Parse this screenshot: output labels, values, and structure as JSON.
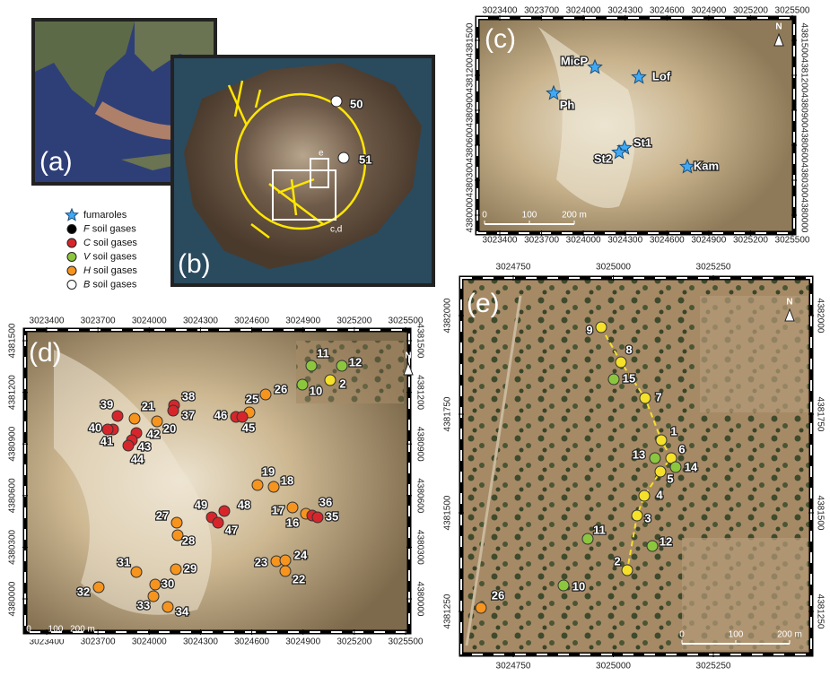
{
  "legend": [
    {
      "text": "fumaroles",
      "color": "#3fa9f5"
    },
    {
      "letter": "F",
      "text": "soil gases",
      "color": "#000000"
    },
    {
      "letter": "C",
      "text": "soil gases",
      "color": "#d7262b"
    },
    {
      "letter": "V",
      "text": "soil gases",
      "color": "#8cc63f"
    },
    {
      "letter": "H",
      "text": "soil gases",
      "color": "#f7941d"
    },
    {
      "letter": "B",
      "text": "soil gases",
      "color": "#ffffff"
    }
  ],
  "panels": {
    "a": {
      "label": "(a)"
    },
    "b": {
      "label": "(b)",
      "points": [
        {
          "label": "50",
          "color": "#ffffff"
        },
        {
          "label": "51",
          "color": "#ffffff"
        }
      ],
      "boxes": [
        "e",
        "c,d"
      ]
    },
    "c": {
      "label": "(c)",
      "xticks": [
        3023400,
        3023700,
        3024000,
        3024300,
        3024600,
        3024900,
        3025200,
        3025500
      ],
      "yticks": [
        4381500,
        4381200,
        4380900,
        4380600,
        4380300,
        4380000
      ],
      "points": [
        {
          "label": "MicP",
          "color": "#3fa9f5"
        },
        {
          "label": "Lof",
          "color": "#3fa9f5"
        },
        {
          "label": "Ph",
          "color": "#3fa9f5"
        },
        {
          "label": "St1",
          "color": "#3fa9f5"
        },
        {
          "label": "St2",
          "color": "#3fa9f5"
        },
        {
          "label": "Kam",
          "color": "#3fa9f5"
        }
      ],
      "north": "N",
      "scale": [
        "0",
        "100",
        "200 m"
      ]
    },
    "d": {
      "label": "(d)",
      "xticks": [
        3023400,
        3023700,
        3024000,
        3024300,
        3024600,
        3024900,
        3025200,
        3025500
      ],
      "yticks": [
        4381500,
        4381200,
        4380900,
        4380600,
        4380300,
        4380000
      ],
      "points": [
        {
          "label": "11",
          "color": "#8cc63f"
        },
        {
          "label": "12",
          "color": "#8cc63f"
        },
        {
          "label": "10",
          "color": "#8cc63f"
        },
        {
          "label": "2",
          "color": "#f5e02a"
        },
        {
          "label": "26",
          "color": "#f7941d"
        },
        {
          "label": "25",
          "color": "#f7941d"
        },
        {
          "label": "46",
          "color": "#d7262b"
        },
        {
          "label": "45",
          "color": "#d7262b"
        },
        {
          "label": "38",
          "color": "#d7262b"
        },
        {
          "label": "37",
          "color": "#d7262b"
        },
        {
          "label": "39",
          "color": "#d7262b"
        },
        {
          "label": "21",
          "color": "#f7941d"
        },
        {
          "label": "40",
          "color": "#d7262b"
        },
        {
          "label": "41",
          "color": "#d7262b"
        },
        {
          "label": "42",
          "color": "#d7262b"
        },
        {
          "label": "20",
          "color": "#f7941d"
        },
        {
          "label": "43",
          "color": "#d7262b"
        },
        {
          "label": "44",
          "color": "#d7262b"
        },
        {
          "label": "19",
          "color": "#f7941d"
        },
        {
          "label": "18",
          "color": "#f7941d"
        },
        {
          "label": "49",
          "color": "#d7262b"
        },
        {
          "label": "48",
          "color": "#d7262b"
        },
        {
          "label": "47",
          "color": "#d7262b"
        },
        {
          "label": "27",
          "color": "#f7941d"
        },
        {
          "label": "28",
          "color": "#f7941d"
        },
        {
          "label": "17",
          "color": "#f7941d"
        },
        {
          "label": "16",
          "color": "#f7941d"
        },
        {
          "label": "36",
          "color": "#d7262b"
        },
        {
          "label": "35",
          "color": "#d7262b"
        },
        {
          "label": "23",
          "color": "#f7941d"
        },
        {
          "label": "24",
          "color": "#f7941d"
        },
        {
          "label": "22",
          "color": "#f7941d"
        },
        {
          "label": "31",
          "color": "#f7941d"
        },
        {
          "label": "29",
          "color": "#f7941d"
        },
        {
          "label": "32",
          "color": "#f7941d"
        },
        {
          "label": "30",
          "color": "#f7941d"
        },
        {
          "label": "33",
          "color": "#f7941d"
        },
        {
          "label": "34",
          "color": "#f7941d"
        }
      ],
      "north": "N",
      "scale": [
        "0",
        "100",
        "200 m"
      ]
    },
    "e": {
      "label": "(e)",
      "xticks": [
        3024750,
        3025000,
        3025250
      ],
      "yticks": [
        4382000,
        4381750,
        4381500,
        4381250
      ],
      "points": [
        {
          "label": "9",
          "color": "#f5e02a"
        },
        {
          "label": "8",
          "color": "#f5e02a"
        },
        {
          "label": "15",
          "color": "#8cc63f"
        },
        {
          "label": "7",
          "color": "#f5e02a"
        },
        {
          "label": "1",
          "color": "#f5e02a"
        },
        {
          "label": "6",
          "color": "#f5e02a"
        },
        {
          "label": "13",
          "color": "#8cc63f"
        },
        {
          "label": "14",
          "color": "#8cc63f"
        },
        {
          "label": "5",
          "color": "#f5e02a"
        },
        {
          "label": "4",
          "color": "#f5e02a"
        },
        {
          "label": "3",
          "color": "#f5e02a"
        },
        {
          "label": "11",
          "color": "#8cc63f"
        },
        {
          "label": "12",
          "color": "#8cc63f"
        },
        {
          "label": "2",
          "color": "#f5e02a"
        },
        {
          "label": "10",
          "color": "#8cc63f"
        },
        {
          "label": "26",
          "color": "#f7941d"
        }
      ],
      "north": "N",
      "scale": [
        "0",
        "100",
        "200 m"
      ]
    }
  }
}
